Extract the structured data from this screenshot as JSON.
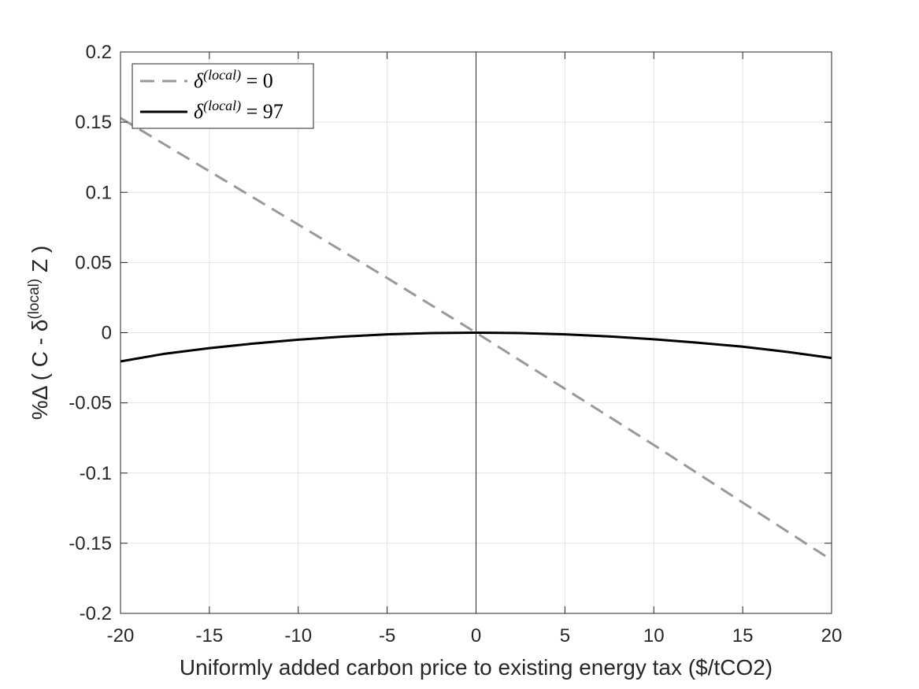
{
  "chart_data": {
    "type": "line",
    "title": "",
    "xlabel": "Uniformly added carbon price to existing energy tax ($/tCO2)",
    "ylabel": {
      "prefix": "%Δ ( C - ",
      "delta": "δ",
      "superscript": "(local)",
      "suffix": " Z )"
    },
    "xlim": [
      -20,
      20
    ],
    "ylim": [
      -0.2,
      0.2
    ],
    "xticks": [
      -20,
      -15,
      -10,
      -5,
      0,
      5,
      10,
      15,
      20
    ],
    "xtick_labels": [
      "-20",
      "-15",
      "-10",
      "-5",
      "0",
      "5",
      "10",
      "15",
      "20"
    ],
    "yticks": [
      -0.2,
      -0.15,
      -0.1,
      -0.05,
      0,
      0.05,
      0.1,
      0.15,
      0.2
    ],
    "ytick_labels": [
      "-0.2",
      "-0.15",
      "-0.1",
      "-0.05",
      "0",
      "0.05",
      "0.1",
      "0.15",
      "0.2"
    ],
    "grid": true,
    "legend_position": "top-left",
    "vertical_reference_line": 0,
    "series": [
      {
        "name": "δ^(local) = 0",
        "legend": {
          "symbol": "δ",
          "superscript": "(local)",
          "rest": " = 0"
        },
        "color": "#999999",
        "dash": "dashed",
        "x": [
          -20,
          -15,
          -10,
          -5,
          0,
          5,
          10,
          15,
          20
        ],
        "y": [
          0.153,
          0.115,
          0.077,
          0.039,
          0,
          -0.04,
          -0.08,
          -0.121,
          -0.162
        ]
      },
      {
        "name": "δ^(local) = 97",
        "legend": {
          "symbol": "δ",
          "superscript": "(local)",
          "rest": " = 97"
        },
        "color": "#000000",
        "dash": "solid",
        "x": [
          -20,
          -17.5,
          -15,
          -12.5,
          -10,
          -7.5,
          -5,
          -2.5,
          0,
          2.5,
          5,
          7.5,
          10,
          12.5,
          15,
          17.5,
          20
        ],
        "y": [
          -0.0205,
          -0.015,
          -0.011,
          -0.0077,
          -0.005,
          -0.0028,
          -0.0012,
          -0.0003,
          0,
          -0.0003,
          -0.0012,
          -0.0027,
          -0.0047,
          -0.0072,
          -0.01,
          -0.0137,
          -0.018
        ]
      }
    ]
  }
}
